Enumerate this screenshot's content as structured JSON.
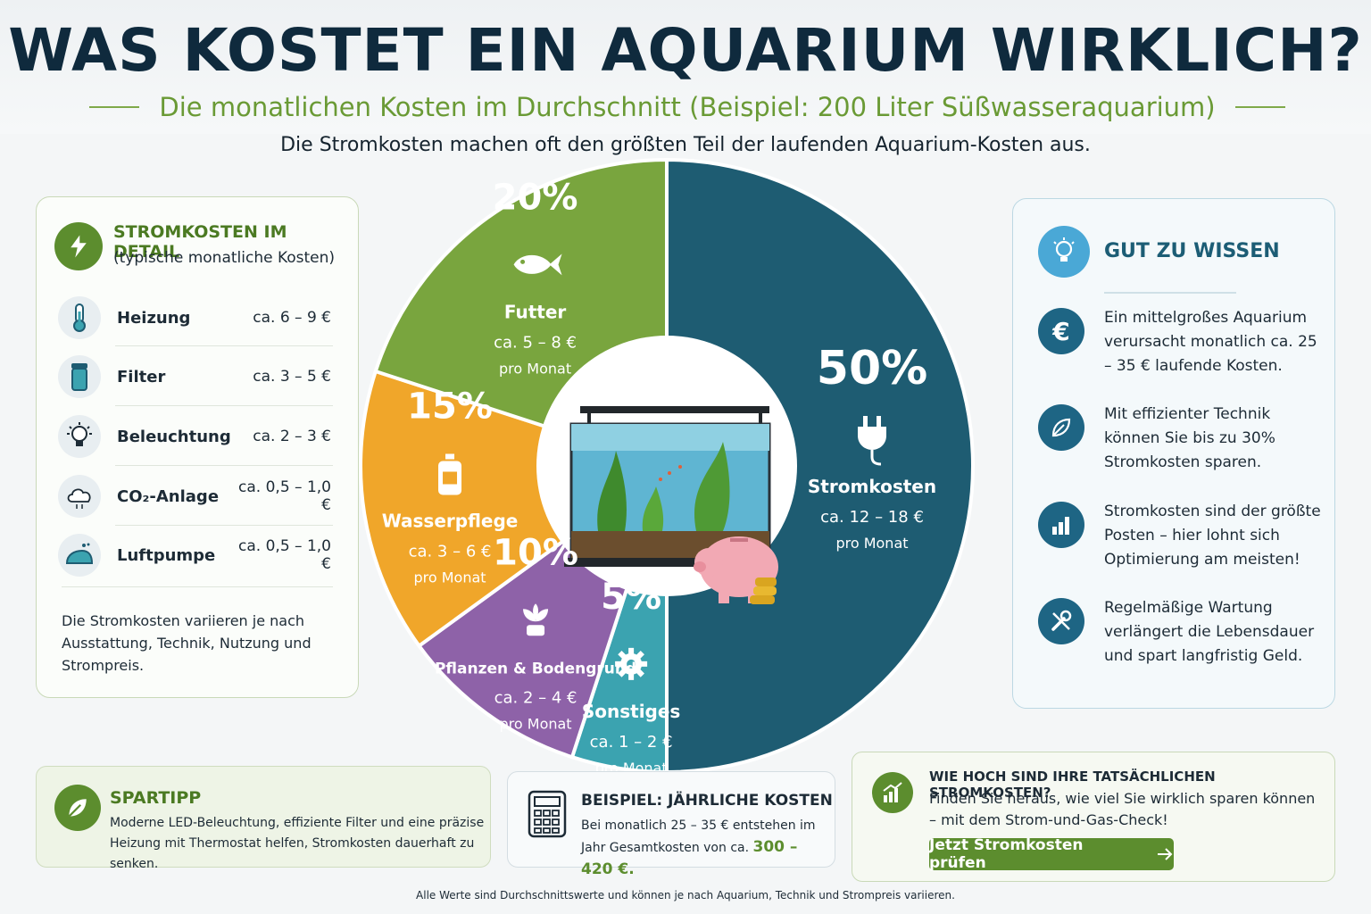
{
  "title": "WAS KOSTET EIN AQUARIUM WIRKLICH?",
  "subtitle": "Die monatlichen Kosten im Durchschnitt (Beispiel: 200 Liter Süßwasseraquarium)",
  "intro": "Die Stromkosten machen oft den größten Teil der laufenden Aquarium-Kosten aus.",
  "left_panel": {
    "title": "STROMKOSTEN IM DETAIL",
    "subtitle": "(typische monatliche Kosten)",
    "items": [
      {
        "name": "Heizung",
        "value": "ca. 6 – 9 €",
        "icon": "thermometer-icon"
      },
      {
        "name": "Filter",
        "value": "ca. 3 – 5 €",
        "icon": "filter-icon"
      },
      {
        "name": "Beleuchtung",
        "value": "ca. 2 – 3 €",
        "icon": "lightbulb-icon"
      },
      {
        "name": "CO₂-Anlage",
        "value": "ca. 0,5 – 1,0 €",
        "icon": "co2-icon"
      },
      {
        "name": "Luftpumpe",
        "value": "ca. 0,5 – 1,0 €",
        "icon": "air-pump-icon"
      }
    ],
    "note": "Die Stromkosten variieren je nach Ausstattung, Technik, Nutzung und Strompreis."
  },
  "right_panel": {
    "title": "GUT ZU WISSEN",
    "items": [
      {
        "icon": "euro-icon",
        "text": "Ein mittelgroßes Aquarium verursacht monatlich ca. 25 – 35 € laufende Kosten."
      },
      {
        "icon": "leaf-icon",
        "text": "Mit effizienter Technik können Sie bis zu 30% Stromkosten sparen."
      },
      {
        "icon": "bar-chart-icon",
        "text": "Stromkosten sind der größte Posten – hier lohnt sich Optimierung am meisten!"
      },
      {
        "icon": "tools-icon",
        "text": "Regelmäßige Wartung verlängert die Lebensdauer und spart langfristig Geld."
      }
    ]
  },
  "chart_data": {
    "type": "pie",
    "style": "donut",
    "slices": [
      {
        "label": "Stromkosten",
        "percent": 50,
        "range": "ca. 12 – 18 €",
        "unit": "pro Monat",
        "color": "#1e5c72",
        "icon": "plug-icon"
      },
      {
        "label": "Sonstiges",
        "percent": 5,
        "range": "ca. 1 – 2 €",
        "unit": "pro Monat",
        "color": "#3ba3b0",
        "icon": "gear-icon"
      },
      {
        "label": "Pflanzen & Bodengrund",
        "percent": 10,
        "range": "ca. 2 – 4 €",
        "unit": "pro Monat",
        "color": "#8e62a8",
        "icon": "plant-icon"
      },
      {
        "label": "Wasserpflege",
        "percent": 15,
        "range": "ca. 3 – 6 €",
        "unit": "pro Monat",
        "color": "#f0a62a",
        "icon": "bottle-icon"
      },
      {
        "label": "Futter",
        "percent": 20,
        "range": "ca. 5 – 8 €",
        "unit": "pro Monat",
        "color": "#79a53e",
        "icon": "fish-icon"
      }
    ]
  },
  "spartipp": {
    "title": "SPARTIPP",
    "text": "Moderne LED-Beleuchtung, effiziente Filter und eine präzise Heizung mit Thermostat helfen, Stromkosten dauerhaft zu senken."
  },
  "beispiel": {
    "title": "BEISPIEL: JÄHRLICHE KOSTEN",
    "text": "Bei monatlich 25 – 35 € entstehen im Jahr Gesamtkosten von ca.",
    "highlight": "300 – 420 €."
  },
  "check": {
    "title": "WIE HOCH SIND IHRE TATSÄCHLICHEN STROMKOSTEN?",
    "text": "Finden Sie heraus, wie viel Sie wirklich sparen können – mit dem Strom-und-Gas-Check!",
    "button": "Jetzt Stromkosten prüfen"
  },
  "footer": "Alle Werte sind Durchschnittswerte und können je nach Aquarium, Technik und Strompreis variieren."
}
